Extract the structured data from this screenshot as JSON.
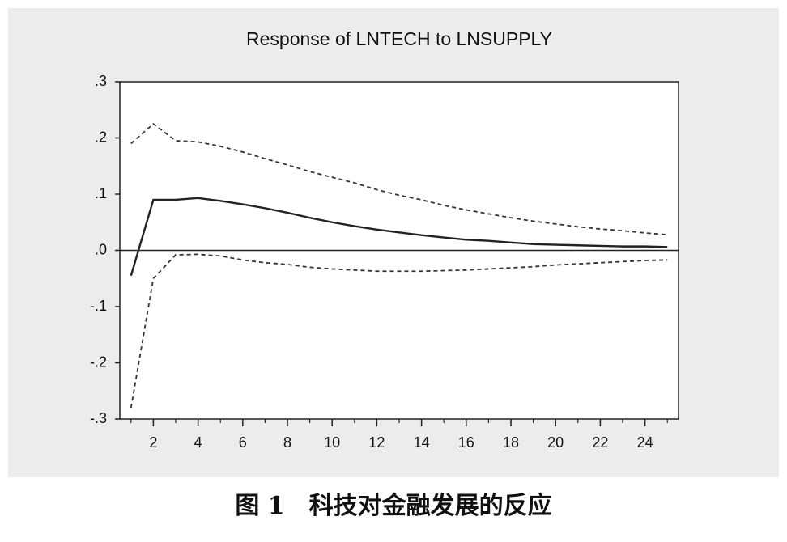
{
  "chart_data": {
    "type": "line",
    "title": "Response of LNTECH to LNSUPPLY",
    "caption": "图 1　科技对金融发展的反应",
    "x": [
      1,
      2,
      3,
      4,
      5,
      6,
      7,
      8,
      9,
      10,
      11,
      12,
      13,
      14,
      15,
      16,
      17,
      18,
      19,
      20,
      21,
      22,
      23,
      24,
      25
    ],
    "series": [
      {
        "color": "#222222",
        "dashed": false,
        "values": [
          -0.045,
          0.09,
          0.09,
          0.093,
          0.088,
          0.082,
          0.075,
          0.067,
          0.058,
          0.05,
          0.043,
          0.037,
          0.032,
          0.027,
          0.023,
          0.019,
          0.017,
          0.014,
          0.011,
          0.01,
          0.009,
          0.008,
          0.007,
          0.007,
          0.006
        ]
      },
      {
        "color": "#333333",
        "dashed": true,
        "values": [
          0.19,
          0.225,
          0.195,
          0.193,
          0.185,
          0.175,
          0.163,
          0.152,
          0.14,
          0.13,
          0.12,
          0.108,
          0.098,
          0.09,
          0.08,
          0.072,
          0.065,
          0.058,
          0.052,
          0.047,
          0.042,
          0.038,
          0.035,
          0.031,
          0.028
        ]
      },
      {
        "color": "#333333",
        "dashed": true,
        "values": [
          -0.28,
          -0.05,
          -0.008,
          -0.007,
          -0.01,
          -0.017,
          -0.022,
          -0.025,
          -0.03,
          -0.033,
          -0.035,
          -0.037,
          -0.037,
          -0.037,
          -0.036,
          -0.035,
          -0.033,
          -0.031,
          -0.029,
          -0.026,
          -0.024,
          -0.022,
          -0.02,
          -0.018,
          -0.017
        ]
      }
    ],
    "xlim": [
      0.5,
      25.5
    ],
    "xticks": [
      2,
      4,
      6,
      8,
      10,
      12,
      14,
      16,
      18,
      20,
      22,
      24
    ],
    "ylim": [
      -0.3,
      0.3
    ],
    "yticks": [
      {
        "value": -0.3,
        "label": "-.3"
      },
      {
        "value": -0.2,
        "label": "-.2"
      },
      {
        "value": -0.1,
        "label": "-.1"
      },
      {
        "value": 0,
        "label": ".0"
      },
      {
        "value": 0.1,
        "label": ".1"
      },
      {
        "value": 0.2,
        "label": ".2"
      },
      {
        "value": 0.3,
        "label": ".3"
      }
    ],
    "zero_line": true
  }
}
